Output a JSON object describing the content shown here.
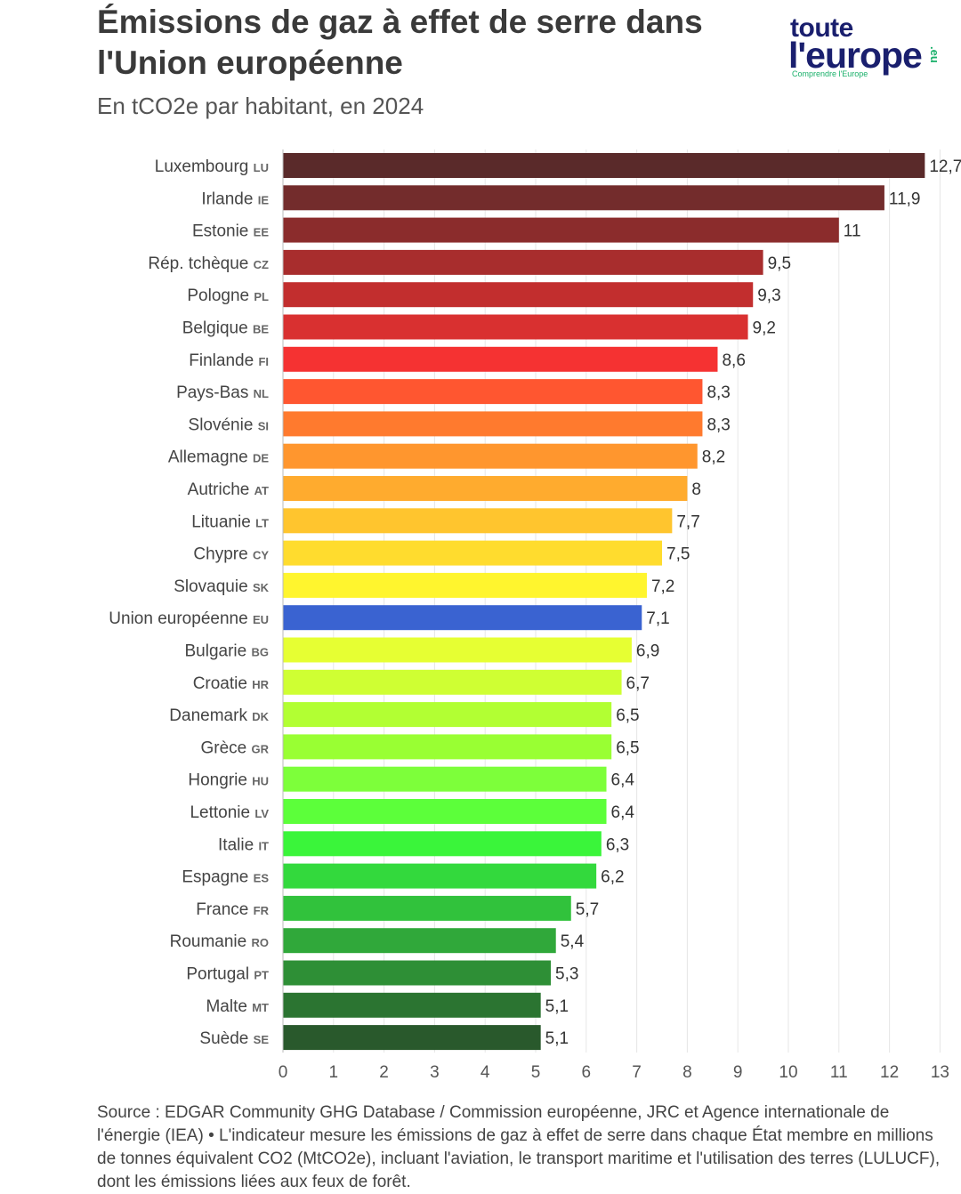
{
  "header": {
    "title": "Émissions de gaz à effet de serre dans l'Union européenne",
    "subtitle": "En tCO2e par habitant, en 2024"
  },
  "logo": {
    "line1": "toute",
    "line2": "l'europe",
    "tagline": "Comprendre l'Europe",
    "suffix": ".eu"
  },
  "chart_data": {
    "type": "bar",
    "orientation": "horizontal",
    "title": "Émissions de gaz à effet de serre dans l'Union européenne",
    "subtitle": "En tCO2e par habitant, en 2024",
    "xlabel": "",
    "ylabel": "",
    "xlim": [
      0,
      13
    ],
    "xticks": [
      "0",
      "1",
      "2",
      "3",
      "4",
      "5",
      "6",
      "7",
      "8",
      "9",
      "10",
      "11",
      "12",
      "13"
    ],
    "grid": true,
    "categories": [
      {
        "name": "Luxembourg",
        "code": "LU",
        "value": 12.7,
        "label": "12,7",
        "color": "#5a2a2a"
      },
      {
        "name": "Irlande",
        "code": "IE",
        "value": 11.9,
        "label": "11,9",
        "color": "#732c2c"
      },
      {
        "name": "Estonie",
        "code": "EE",
        "value": 11,
        "label": "11",
        "color": "#8b2c2c"
      },
      {
        "name": "Rép. tchèque",
        "code": "CZ",
        "value": 9.5,
        "label": "9,5",
        "color": "#a82d2d"
      },
      {
        "name": "Pologne",
        "code": "PL",
        "value": 9.3,
        "label": "9,3",
        "color": "#c22e2e"
      },
      {
        "name": "Belgique",
        "code": "BE",
        "value": 9.2,
        "label": "9,2",
        "color": "#d93030"
      },
      {
        "name": "Finlande",
        "code": "FI",
        "value": 8.6,
        "label": "8,6",
        "color": "#f53232"
      },
      {
        "name": "Pays-Bas",
        "code": "NL",
        "value": 8.3,
        "label": "8,3",
        "color": "#ff5630"
      },
      {
        "name": "Slovénie",
        "code": "SI",
        "value": 8.3,
        "label": "8,3",
        "color": "#ff7a2e"
      },
      {
        "name": "Allemagne",
        "code": "DE",
        "value": 8.2,
        "label": "8,2",
        "color": "#ff962e"
      },
      {
        "name": "Autriche",
        "code": "AT",
        "value": 8,
        "label": "8",
        "color": "#ffab2e"
      },
      {
        "name": "Lituanie",
        "code": "LT",
        "value": 7.7,
        "label": "7,7",
        "color": "#ffc52e"
      },
      {
        "name": "Chypre",
        "code": "CY",
        "value": 7.5,
        "label": "7,5",
        "color": "#ffdc2e"
      },
      {
        "name": "Slovaquie",
        "code": "SK",
        "value": 7.2,
        "label": "7,2",
        "color": "#fff52e"
      },
      {
        "name": "Union européenne",
        "code": "EU",
        "value": 7.1,
        "label": "7,1",
        "color": "#3a63d1"
      },
      {
        "name": "Bulgarie",
        "code": "BG",
        "value": 6.9,
        "label": "6,9",
        "color": "#e6ff33"
      },
      {
        "name": "Croatie",
        "code": "HR",
        "value": 6.7,
        "label": "6,7",
        "color": "#cfff33"
      },
      {
        "name": "Danemark",
        "code": "DK",
        "value": 6.5,
        "label": "6,5",
        "color": "#b2ff33"
      },
      {
        "name": "Grèce",
        "code": "GR",
        "value": 6.5,
        "label": "6,5",
        "color": "#99ff33"
      },
      {
        "name": "Hongrie",
        "code": "HU",
        "value": 6.4,
        "label": "6,4",
        "color": "#7dff3a"
      },
      {
        "name": "Lettonie",
        "code": "LV",
        "value": 6.4,
        "label": "6,4",
        "color": "#5cff3a"
      },
      {
        "name": "Italie",
        "code": "IT",
        "value": 6.3,
        "label": "6,3",
        "color": "#3af53a"
      },
      {
        "name": "Espagne",
        "code": "ES",
        "value": 6.2,
        "label": "6,2",
        "color": "#33d93d"
      },
      {
        "name": "France",
        "code": "FR",
        "value": 5.7,
        "label": "5,7",
        "color": "#31c23c"
      },
      {
        "name": "Roumanie",
        "code": "RO",
        "value": 5.4,
        "label": "5,4",
        "color": "#30a83a"
      },
      {
        "name": "Portugal",
        "code": "PT",
        "value": 5.3,
        "label": "5,3",
        "color": "#2e8f36"
      },
      {
        "name": "Malte",
        "code": "MT",
        "value": 5.1,
        "label": "5,1",
        "color": "#2b7431"
      },
      {
        "name": "Suède",
        "code": "SE",
        "value": 5.1,
        "label": "5,1",
        "color": "#29592c"
      }
    ]
  },
  "footer": {
    "source": "Source : EDGAR Community GHG Database / Commission européenne, JRC et Agence internationale de l'énergie (IEA) • L'indicateur mesure les émissions de gaz à effet de serre dans chaque État membre en millions de tonnes équivalent CO2 (MtCO2e), incluant l'aviation, le transport maritime et l'utilisation des terres (LULUCF), dont les émissions liées aux feux de forêt."
  }
}
